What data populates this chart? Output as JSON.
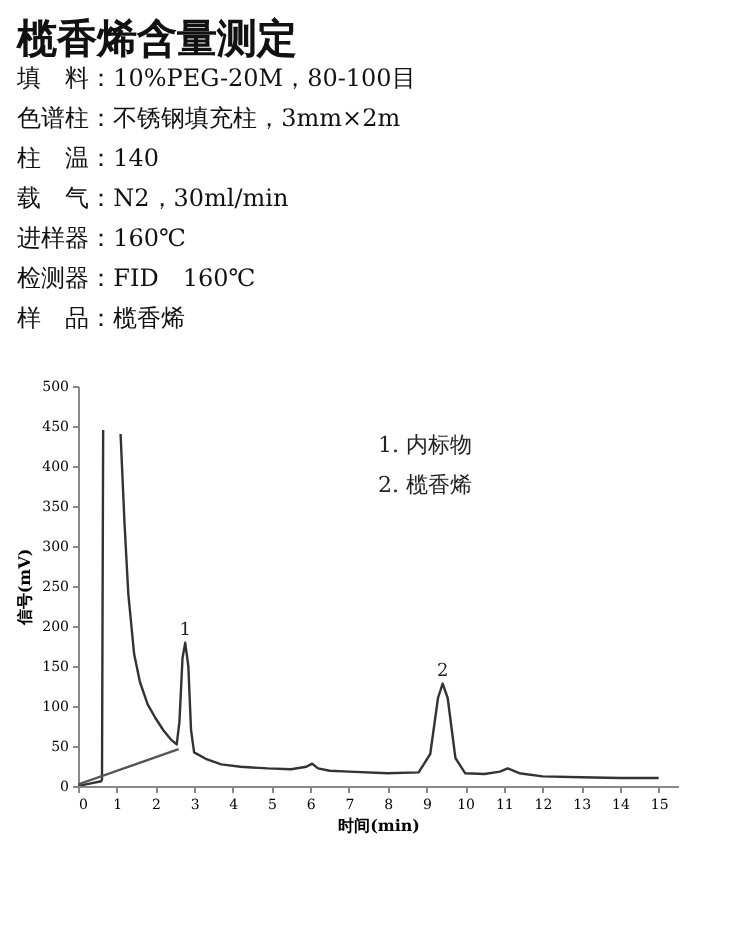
{
  "chart_data": {
    "type": "line",
    "title": "榄香烯含量测定",
    "xlabel": "时间(min)",
    "ylabel": "信号(mV)",
    "series": [
      {
        "color": "#333333",
        "x": [
          0,
          0.3,
          0.6,
          0.62,
          0.65,
          0.9,
          1.1,
          1.2,
          1.3,
          1.45,
          1.6,
          1.8,
          2.0,
          2.2,
          2.4,
          2.55,
          2.62,
          2.7,
          2.77,
          2.85,
          2.92,
          3.0,
          3.3,
          3.7,
          4.2,
          4.9,
          5.5,
          5.9,
          6.05,
          6.2,
          6.5,
          7,
          8,
          8.8,
          9.1,
          9.3,
          9.42,
          9.55,
          9.75,
          10,
          10.5,
          10.9,
          11.1,
          11.4,
          12,
          13,
          14,
          15
        ],
        "values": [
          0,
          3,
          6,
          8,
          445,
          null,
          440,
          330,
          240,
          165,
          130,
          102,
          85,
          70,
          58,
          52,
          80,
          160,
          179,
          150,
          70,
          42,
          34,
          27,
          24,
          22,
          21,
          24,
          28,
          22,
          19,
          18,
          16,
          17,
          40,
          110,
          128,
          110,
          35,
          16,
          15,
          18,
          22,
          16,
          12,
          11,
          10,
          10
        ]
      },
      {
        "color": "#555555",
        "x": [
          0,
          2.6
        ],
        "values": [
          2,
          46
        ]
      }
    ],
    "xlim": [
      0,
      15.5
    ],
    "xticks": [
      0,
      1,
      2,
      3,
      4,
      5,
      6,
      7,
      8,
      9,
      10,
      11,
      12,
      13,
      14,
      15
    ],
    "ylim": [
      0,
      500
    ],
    "yticks": [
      0,
      50,
      100,
      150,
      200,
      250,
      300,
      350,
      400,
      450,
      500
    ],
    "grid": false,
    "annotations": [
      "填　料：10%PEG-20M，80-100目",
      "色谱柱：不锈钢填充柱，3mm×2m",
      "柱　温：140",
      "载　气：N2，30ml/min",
      "进样器：160℃",
      "检测器：FID　160℃",
      "样　品：榄香烯",
      "1. 内标物",
      "2. 榄香烯",
      {
        "text": "1",
        "x": 2.77,
        "y": 179
      },
      {
        "text": "2",
        "x": 9.42,
        "y": 128
      }
    ]
  }
}
